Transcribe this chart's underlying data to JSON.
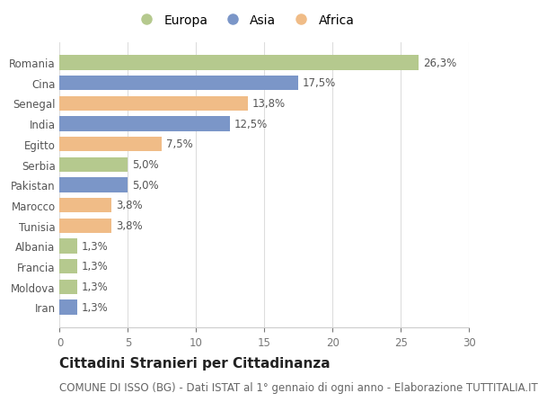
{
  "categories": [
    "Romania",
    "Cina",
    "Senegal",
    "India",
    "Egitto",
    "Serbia",
    "Pakistan",
    "Marocco",
    "Tunisia",
    "Albania",
    "Francia",
    "Moldova",
    "Iran"
  ],
  "values": [
    26.3,
    17.5,
    13.8,
    12.5,
    7.5,
    5.0,
    5.0,
    3.8,
    3.8,
    1.3,
    1.3,
    1.3,
    1.3
  ],
  "labels": [
    "26,3%",
    "17,5%",
    "13,8%",
    "12,5%",
    "7,5%",
    "5,0%",
    "5,0%",
    "3,8%",
    "3,8%",
    "1,3%",
    "1,3%",
    "1,3%",
    "1,3%"
  ],
  "continent": [
    "Europa",
    "Asia",
    "Africa",
    "Asia",
    "Africa",
    "Europa",
    "Asia",
    "Africa",
    "Africa",
    "Europa",
    "Europa",
    "Europa",
    "Asia"
  ],
  "colors": {
    "Europa": "#b5c98e",
    "Asia": "#7b96c8",
    "Africa": "#f0bc87"
  },
  "legend_items": [
    "Europa",
    "Asia",
    "Africa"
  ],
  "xlim": [
    0,
    30
  ],
  "xticks": [
    0,
    5,
    10,
    15,
    20,
    25,
    30
  ],
  "title": "Cittadini Stranieri per Cittadinanza",
  "subtitle": "COMUNE DI ISSO (BG) - Dati ISTAT al 1° gennaio di ogni anno - Elaborazione TUTTITALIA.IT",
  "background_color": "#ffffff",
  "bar_height": 0.72,
  "title_fontsize": 11,
  "subtitle_fontsize": 8.5,
  "label_fontsize": 8.5,
  "tick_fontsize": 8.5,
  "legend_fontsize": 10
}
